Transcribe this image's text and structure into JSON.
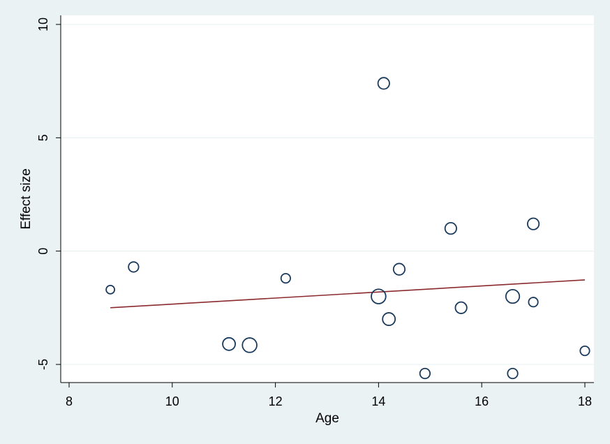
{
  "chart_data": {
    "type": "scatter",
    "title": "",
    "xlabel": "Age",
    "ylabel": "Effect size",
    "xlim": [
      8,
      18
    ],
    "ylim": [
      -5.8,
      10.4
    ],
    "xticks": [
      "8",
      "10",
      "12",
      "14",
      "16",
      "18"
    ],
    "yticks": [
      "-5",
      "0",
      "5",
      "10"
    ],
    "grid": "horizontal",
    "marker_style": "hollow circles sized by weight",
    "colors": {
      "background": "#eaf2f3",
      "plot_area": "#ffffff",
      "markers": "#1a3a5c",
      "fit_line": "#8b2a2e",
      "grid": "#eaf2f3"
    },
    "series": [
      {
        "points": [
          {
            "x": 8.8,
            "y": -1.7,
            "weight": 1
          },
          {
            "x": 9.25,
            "y": -0.7,
            "weight": 2
          },
          {
            "x": 11.1,
            "y": -4.1,
            "weight": 4
          },
          {
            "x": 11.5,
            "y": -4.15,
            "weight": 6
          },
          {
            "x": 12.2,
            "y": -1.2,
            "weight": 1.5
          },
          {
            "x": 14.0,
            "y": -2.0,
            "weight": 6
          },
          {
            "x": 14.1,
            "y": 7.4,
            "weight": 3
          },
          {
            "x": 14.2,
            "y": -3.0,
            "weight": 4
          },
          {
            "x": 14.4,
            "y": -0.8,
            "weight": 3
          },
          {
            "x": 14.9,
            "y": -5.4,
            "weight": 2
          },
          {
            "x": 15.4,
            "y": 1.0,
            "weight": 3
          },
          {
            "x": 15.6,
            "y": -2.5,
            "weight": 3
          },
          {
            "x": 16.6,
            "y": -2.0,
            "weight": 5
          },
          {
            "x": 16.6,
            "y": -5.4,
            "weight": 2
          },
          {
            "x": 17.0,
            "y": 1.2,
            "weight": 3
          },
          {
            "x": 17.0,
            "y": -2.25,
            "weight": 1.5
          },
          {
            "x": 18.0,
            "y": -4.4,
            "weight": 1.5
          }
        ]
      }
    ],
    "fit_line": {
      "x": [
        8.8,
        18.0
      ],
      "y": [
        -2.5,
        -1.27
      ]
    }
  }
}
